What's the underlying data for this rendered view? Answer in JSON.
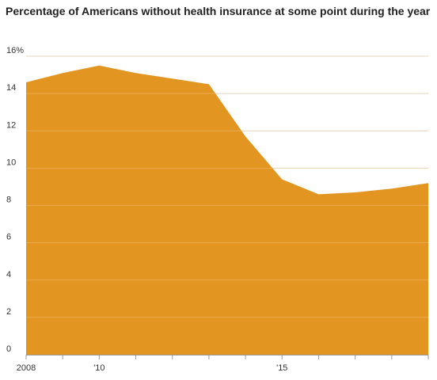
{
  "chart_data": {
    "type": "area",
    "title": "Percentage of Americans without health insurance at some point during the year",
    "xlabel": "",
    "ylabel": "",
    "x": [
      2008,
      2009,
      2010,
      2011,
      2012,
      2013,
      2014,
      2015,
      2016,
      2017,
      2018,
      2019
    ],
    "series": [
      {
        "name": "",
        "values": [
          14.6,
          15.1,
          15.5,
          15.1,
          14.8,
          14.5,
          11.7,
          9.4,
          8.6,
          8.7,
          8.9,
          9.2
        ]
      }
    ],
    "ylim": [
      0,
      16
    ],
    "xlim": [
      2008,
      2019
    ],
    "y_ticks": [
      0,
      2,
      4,
      6,
      8,
      10,
      12,
      14,
      16
    ],
    "y_tick_labels": [
      "0",
      "2",
      "4",
      "6",
      "8",
      "10",
      "12",
      "14",
      "16%"
    ],
    "x_ticks": [
      2008,
      2010,
      2015
    ],
    "x_tick_labels": [
      "2008",
      "'10",
      "'15"
    ],
    "grid": true,
    "colors": {
      "area": "#e39522",
      "grid": "#dddddd",
      "grid_over_area": "#f3c98a",
      "text": "#333333",
      "title": "#222222"
    }
  }
}
